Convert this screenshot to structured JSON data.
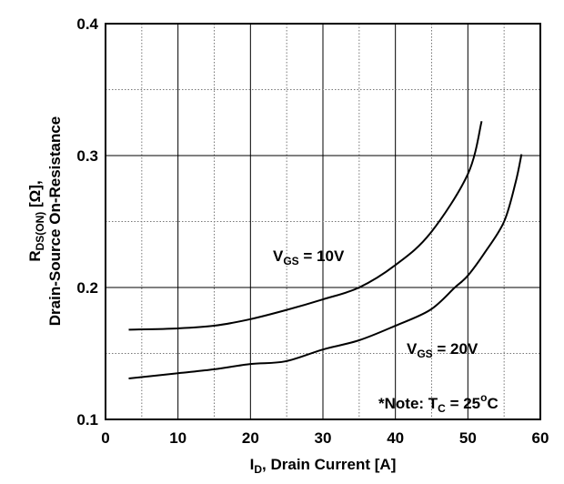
{
  "chart_data": {
    "type": "line",
    "title": "",
    "xlabel": {
      "main": "I",
      "sub": "D",
      "rest": ", Drain Current [A]"
    },
    "ylabel": {
      "line1_main": "R",
      "line1_sub": "DS(ON)",
      "line1_rest": " [Ω],",
      "line2": "Drain-Source On-Resistance"
    },
    "xlim": [
      0,
      60
    ],
    "ylim": [
      0.1,
      0.4
    ],
    "xticks": [
      "0",
      "10",
      "20",
      "30",
      "40",
      "50",
      "60"
    ],
    "yticks": [
      "0.1",
      "0.2",
      "0.3",
      "0.4"
    ],
    "grid": true,
    "series": [
      {
        "name": "VGS = 10V",
        "label_main": "V",
        "label_sub": "GS",
        "label_rest": " = 10V",
        "x": [
          3.2,
          10,
          15,
          20,
          25,
          30,
          35,
          40,
          44.8,
          50,
          51.9
        ],
        "y": [
          0.168,
          0.169,
          0.171,
          0.176,
          0.183,
          0.191,
          0.2,
          0.217,
          0.241,
          0.286,
          0.326
        ]
      },
      {
        "name": "VGS = 20V",
        "label_main": "V",
        "label_sub": "GS",
        "label_rest": " = 20V",
        "x": [
          3.2,
          10,
          15,
          20,
          24.8,
          30,
          35,
          40,
          44.8,
          48.2,
          50,
          52.4,
          55,
          56.6,
          57.4
        ],
        "y": [
          0.131,
          0.135,
          0.138,
          0.142,
          0.144,
          0.153,
          0.16,
          0.171,
          0.183,
          0.2,
          0.209,
          0.227,
          0.25,
          0.28,
          0.301
        ]
      }
    ],
    "annotation": {
      "prefix": "*Note: T",
      "sub": "C",
      "mid": " = 25",
      "sup": "o",
      "suffix": "C"
    }
  }
}
